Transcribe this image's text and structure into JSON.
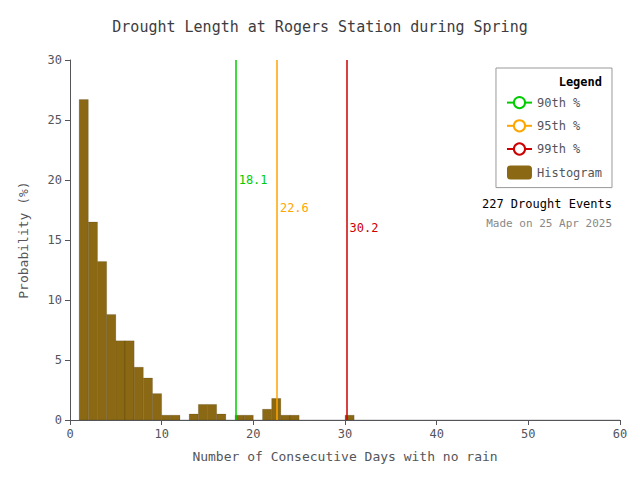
{
  "chart_data": {
    "type": "histogram",
    "title": "Drought Length at Rogers Station during Spring",
    "xlabel": "Number of Consecutive Days with no rain",
    "ylabel": "Probability (%)",
    "name": "Histogram",
    "color": "#8B6914",
    "bins": [
      1,
      2,
      3,
      4,
      5,
      6,
      7,
      8,
      9,
      10,
      11,
      12,
      13,
      14,
      15,
      16,
      17,
      18,
      19,
      20,
      21,
      22,
      23,
      24,
      25,
      26,
      27,
      28,
      29,
      30,
      31,
      32,
      33,
      34,
      35,
      36,
      37,
      38,
      39,
      40,
      41,
      42,
      43,
      44,
      45,
      46,
      47,
      48,
      49,
      50,
      51,
      52,
      53,
      54,
      55,
      56,
      57,
      58,
      59,
      60
    ],
    "values": [
      26.7,
      16.5,
      13.2,
      8.8,
      6.6,
      6.6,
      4.4,
      3.5,
      2.2,
      0.4,
      0.4,
      0.0,
      0.5,
      1.3,
      1.3,
      0.5,
      0.0,
      0.4,
      0.4,
      0.0,
      0.9,
      1.8,
      0.4,
      0.4,
      0.0,
      0.0,
      0.0,
      0.0,
      0.0,
      0.4,
      0.0,
      0.0,
      0.0,
      0.0,
      0.0,
      0.0,
      0.0,
      0.0,
      0.0,
      0.0,
      0.0,
      0.0,
      0.0,
      0.0,
      0.0,
      0.0,
      0.0,
      0.0,
      0.0,
      0.0,
      0.0,
      0.0,
      0.0,
      0.0,
      0.0,
      0.0,
      0.0,
      0.0,
      0.0
    ],
    "lines": [
      {
        "name": "90th %",
        "x": 18.1,
        "color": "#00CC00",
        "label": "18.1",
        "label_x": 18.4,
        "label_y": 20.5
      },
      {
        "name": "95th %",
        "x": 22.6,
        "color": "#FFA500",
        "label": "22.6",
        "label_x": 22.9,
        "label_y": 18.2
      },
      {
        "name": "99th %",
        "x": 30.2,
        "color": "#CC0000",
        "label": "30.2",
        "label_x": 30.5,
        "label_y": 16.5
      }
    ],
    "xlim": [
      0,
      60
    ],
    "ylim": [
      0,
      30
    ],
    "xticks": [
      0,
      10,
      20,
      30,
      40,
      50,
      60
    ],
    "yticks": [
      0,
      5,
      10,
      15,
      20,
      25,
      30
    ],
    "grid": false,
    "legend": "upper right",
    "legend_title": "Legend",
    "annotations": [
      "227 Drought Events",
      "Made on 25 Apr 2025"
    ]
  }
}
